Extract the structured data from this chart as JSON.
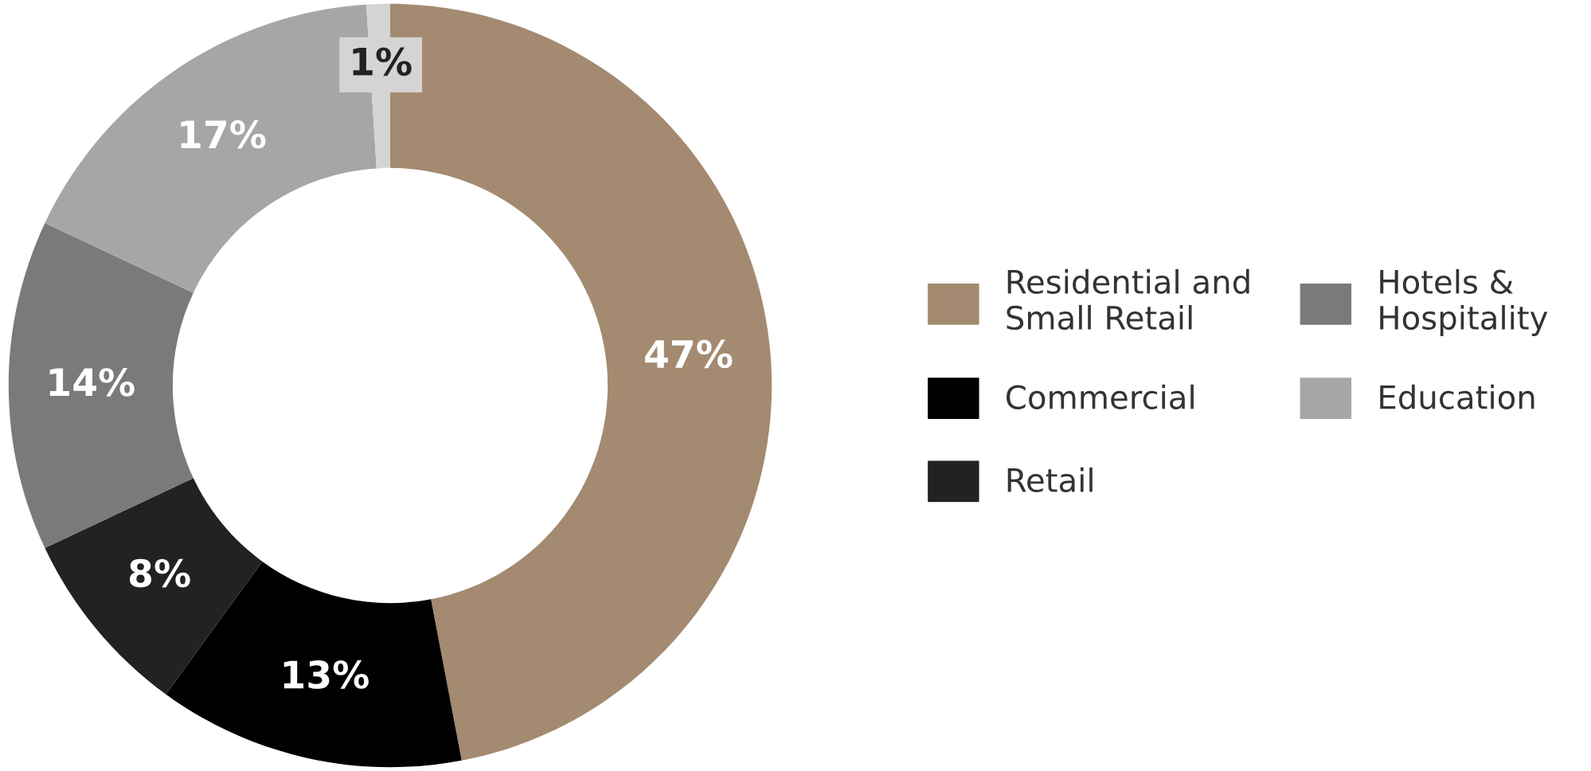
{
  "chart_data": {
    "type": "donut",
    "categories": [
      "Residential and Small Retail",
      "Commercial",
      "Retail",
      "Hotels & Hospitality",
      "Education",
      null
    ],
    "values": [
      47,
      13,
      8,
      14,
      17,
      1
    ],
    "colors": [
      "#a38a70",
      "#000000",
      "#222222",
      "#7a7a7a",
      "#a6a6a6",
      "#d4d4d4"
    ],
    "value_labels": [
      "47%",
      "13%",
      "8%",
      "14%",
      "17%",
      "1%"
    ],
    "legend": "right"
  }
}
